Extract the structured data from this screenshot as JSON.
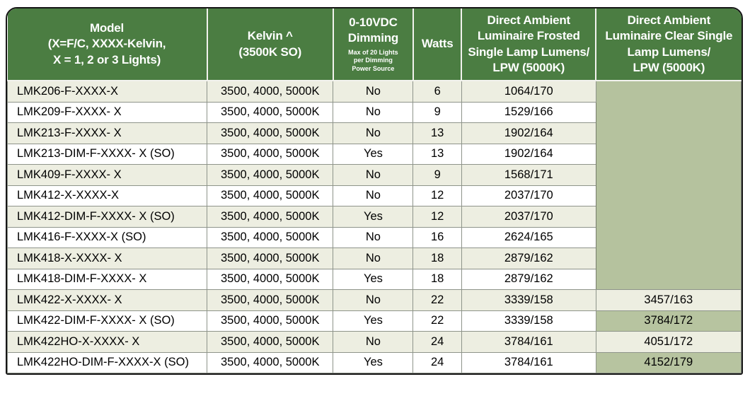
{
  "page": {
    "background": "#ffffff"
  },
  "table": {
    "colors": {
      "header_green": "#4b7d42",
      "sage_green_block": "#b5c29e",
      "sage_green_cell": "#b7c4a0",
      "tint_row": "#edeee1",
      "grid_line": "#8e948a",
      "outer_border": "#161616",
      "header_text": "#ffffff",
      "body_text": "#000000"
    },
    "header": {
      "model": "Model\n(X=F/C, XXXX-Kelvin,\nX = 1, 2 or 3 Lights)",
      "kelvin": "Kelvin ^\n(3500K SO)",
      "dimming_main": "0-10VDC\nDimming",
      "dimming_note": "Max of 20 Lights\nper Dimming\nPower Source",
      "watts": "Watts",
      "frosted": "Direct Ambient\nLuminaire Frosted\nSingle Lamp Lumens/\nLPW (5000K)",
      "clear": "Direct Ambient\nLuminaire Clear Single\nLamp Lumens/\nLPW (5000K)"
    },
    "clear_empty_span": 10,
    "rows": [
      {
        "model": "LMK206-F-XXXX-X",
        "kelvin": "3500, 4000, 5000K",
        "dimming": "No",
        "watts": "6",
        "frosted": "1064/170",
        "clear": "",
        "clear_green": false
      },
      {
        "model": "LMK209-F-XXXX- X",
        "kelvin": "3500, 4000, 5000K",
        "dimming": "No",
        "watts": "9",
        "frosted": "1529/166",
        "clear": "",
        "clear_green": false
      },
      {
        "model": "LMK213-F-XXXX- X",
        "kelvin": "3500, 4000, 5000K",
        "dimming": "No",
        "watts": "13",
        "frosted": "1902/164",
        "clear": "",
        "clear_green": false
      },
      {
        "model": "LMK213-DIM-F-XXXX- X (SO)",
        "kelvin": "3500, 4000, 5000K",
        "dimming": "Yes",
        "watts": "13",
        "frosted": "1902/164",
        "clear": "",
        "clear_green": false
      },
      {
        "model": "LMK409-F-XXXX- X",
        "kelvin": "3500, 4000, 5000K",
        "dimming": "No",
        "watts": "9",
        "frosted": "1568/171",
        "clear": "",
        "clear_green": false
      },
      {
        "model": "LMK412-X-XXXX-X",
        "kelvin": "3500, 4000, 5000K",
        "dimming": "No",
        "watts": "12",
        "frosted": "2037/170",
        "clear": "",
        "clear_green": false
      },
      {
        "model": "LMK412-DIM-F-XXXX- X (SO)",
        "kelvin": "3500, 4000, 5000K",
        "dimming": "Yes",
        "watts": "12",
        "frosted": "2037/170",
        "clear": "",
        "clear_green": false
      },
      {
        "model": "LMK416-F-XXXX-X (SO)",
        "kelvin": "3500, 4000, 5000K",
        "dimming": "No",
        "watts": "16",
        "frosted": "2624/165",
        "clear": "",
        "clear_green": false
      },
      {
        "model": "LMK418-X-XXXX- X",
        "kelvin": "3500, 4000, 5000K",
        "dimming": "No",
        "watts": "18",
        "frosted": "2879/162",
        "clear": "",
        "clear_green": false
      },
      {
        "model": "LMK418-DIM-F-XXXX- X",
        "kelvin": "3500, 4000, 5000K",
        "dimming": "Yes",
        "watts": "18",
        "frosted": "2879/162",
        "clear": "",
        "clear_green": false
      },
      {
        "model": "LMK422-X-XXXX- X",
        "kelvin": "3500, 4000, 5000K",
        "dimming": "No",
        "watts": "22",
        "frosted": "3339/158",
        "clear": "3457/163",
        "clear_green": false
      },
      {
        "model": "LMK422-DIM-F-XXXX- X (SO)",
        "kelvin": "3500, 4000, 5000K",
        "dimming": "Yes",
        "watts": "22",
        "frosted": "3339/158",
        "clear": "3784/172",
        "clear_green": true
      },
      {
        "model": "LMK422HO-X-XXXX- X",
        "kelvin": "3500, 4000, 5000K",
        "dimming": "No",
        "watts": "24",
        "frosted": "3784/161",
        "clear": "4051/172",
        "clear_green": false
      },
      {
        "model": "LMK422HO-DIM-F-XXXX-X (SO)",
        "kelvin": "3500, 4000, 5000K",
        "dimming": "Yes",
        "watts": "24",
        "frosted": "3784/161",
        "clear": "4152/179",
        "clear_green": true
      }
    ]
  }
}
